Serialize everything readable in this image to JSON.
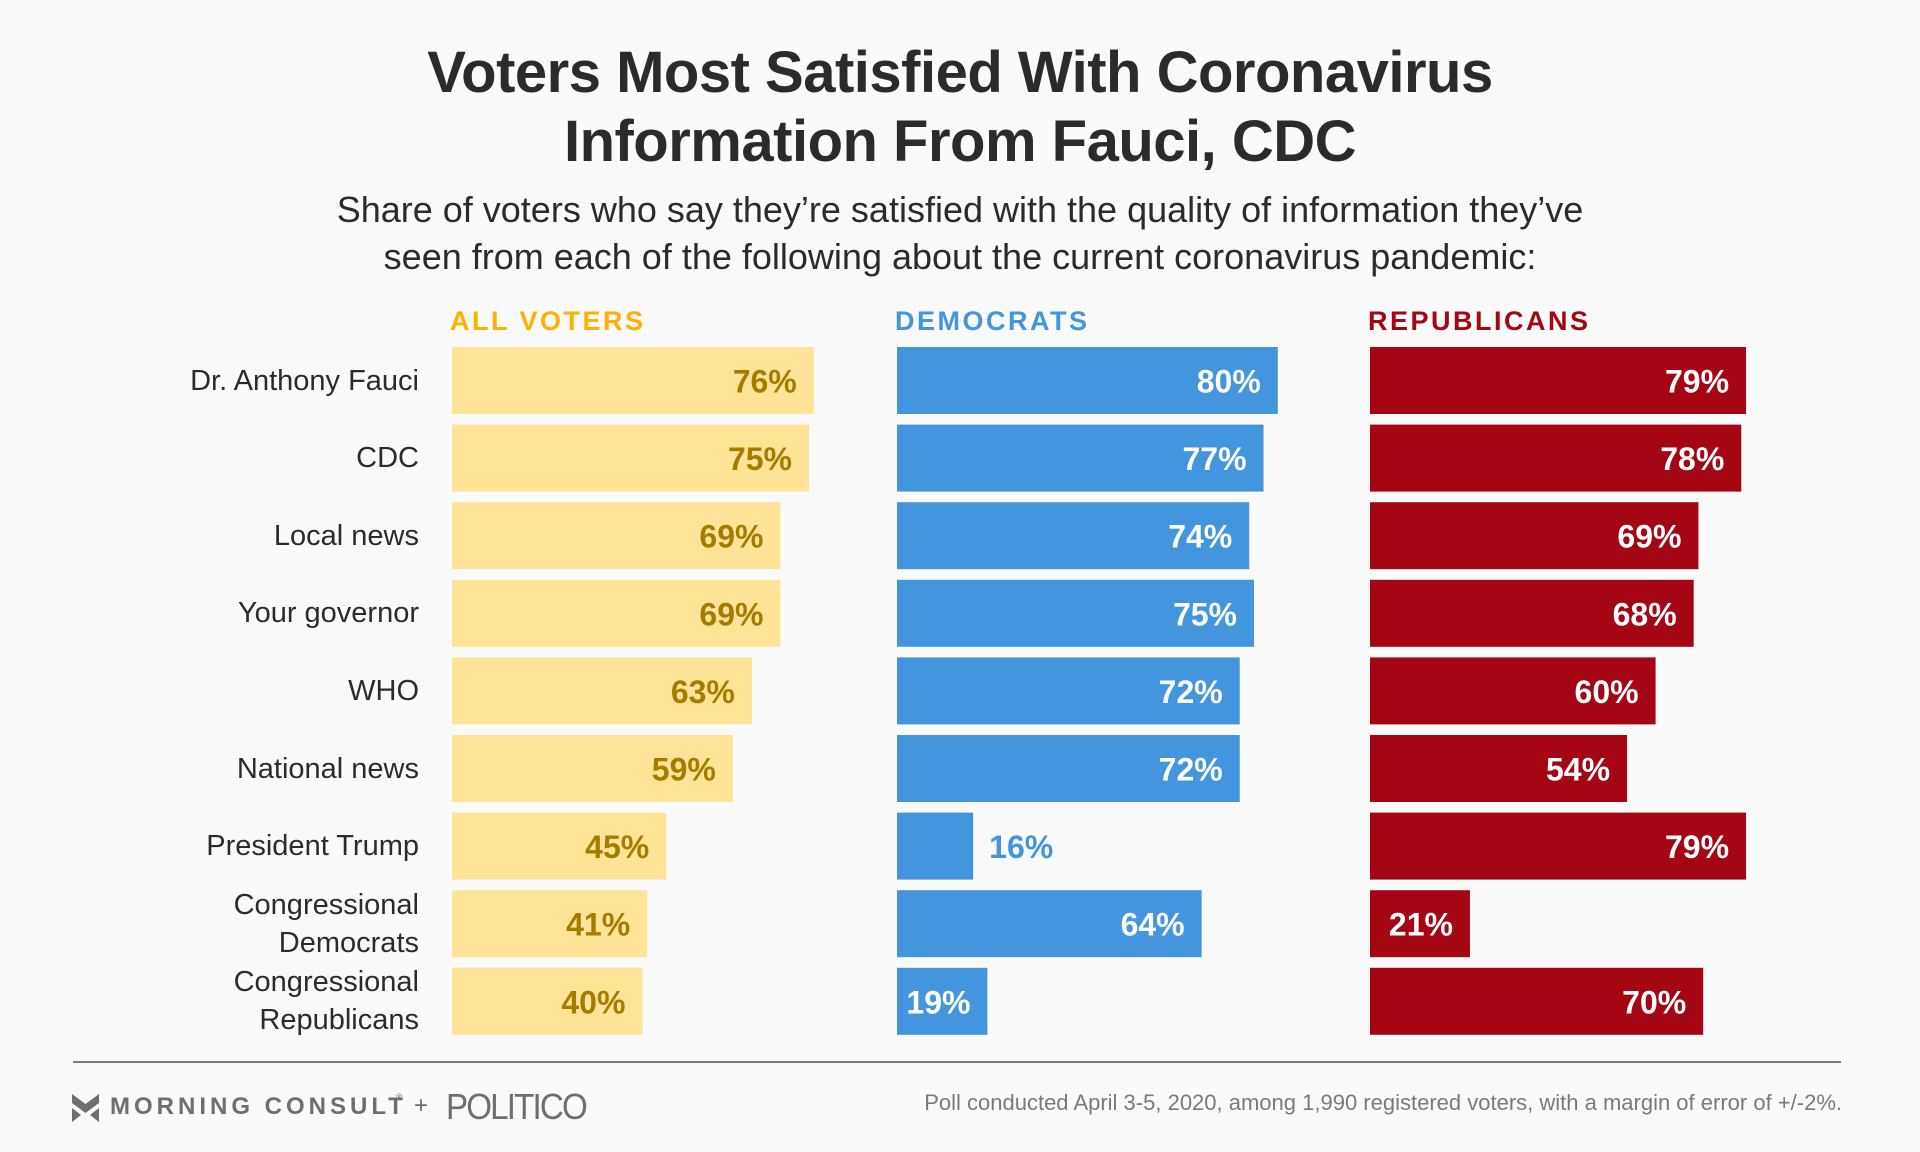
{
  "header": {
    "title_line1": "Voters Most Satisfied With Coronavirus",
    "title_line2": "Information From Fauci, CDC",
    "subtitle_line1": "Share of voters who say they’re satisfied with the quality of information they’ve",
    "subtitle_line2": "seen from each of the following about the current coronavirus pandemic:"
  },
  "colors": {
    "all_voters_bar": "#ffe396",
    "all_voters_text": "#a67c00",
    "all_voters_head": "#ffb000",
    "democrats_bar": "#4396dd",
    "democrats_text": "#ffffff",
    "republicans_bar": "#a50613",
    "republicans_text": "#ffffff"
  },
  "chart_data": {
    "type": "bar",
    "orientation": "horizontal",
    "title": "Voters Most Satisfied With Coronavirus Information From Fauci, CDC",
    "subtitle": "Share of voters who say they’re satisfied with the quality of information they’ve seen from each of the following about the current coronavirus pandemic:",
    "categories": [
      "Dr. Anthony Fauci",
      "CDC",
      "Local news",
      "Your governor",
      "WHO",
      "National news",
      "President Trump",
      "Congressional Democrats",
      "Congressional Republicans"
    ],
    "category_lines": [
      [
        "Dr. Anthony Fauci"
      ],
      [
        "CDC"
      ],
      [
        "Local news"
      ],
      [
        "Your governor"
      ],
      [
        "WHO"
      ],
      [
        "National news"
      ],
      [
        "President Trump"
      ],
      [
        "Congressional",
        "Democrats"
      ],
      [
        "Congressional",
        "Republicans"
      ]
    ],
    "series": [
      {
        "name": "ALL VOTERS",
        "values": [
          76,
          75,
          69,
          69,
          63,
          59,
          45,
          41,
          40
        ]
      },
      {
        "name": "DEMOCRATS",
        "values": [
          80,
          77,
          74,
          75,
          72,
          72,
          16,
          64,
          19
        ]
      },
      {
        "name": "REPUBLICANS",
        "values": [
          79,
          78,
          69,
          68,
          60,
          54,
          79,
          21,
          70
        ]
      }
    ],
    "value_suffix": "%",
    "xlim": [
      0,
      100
    ],
    "grid": false,
    "legend": "column headers above each panel"
  },
  "footer": {
    "brand1": "MORNING CONSULT",
    "registered": "®",
    "plus": "+",
    "brand2": "POLITICO",
    "source": "Poll conducted April 3-5, 2020, among 1,990 registered voters, with a margin of error of +/-2%."
  }
}
